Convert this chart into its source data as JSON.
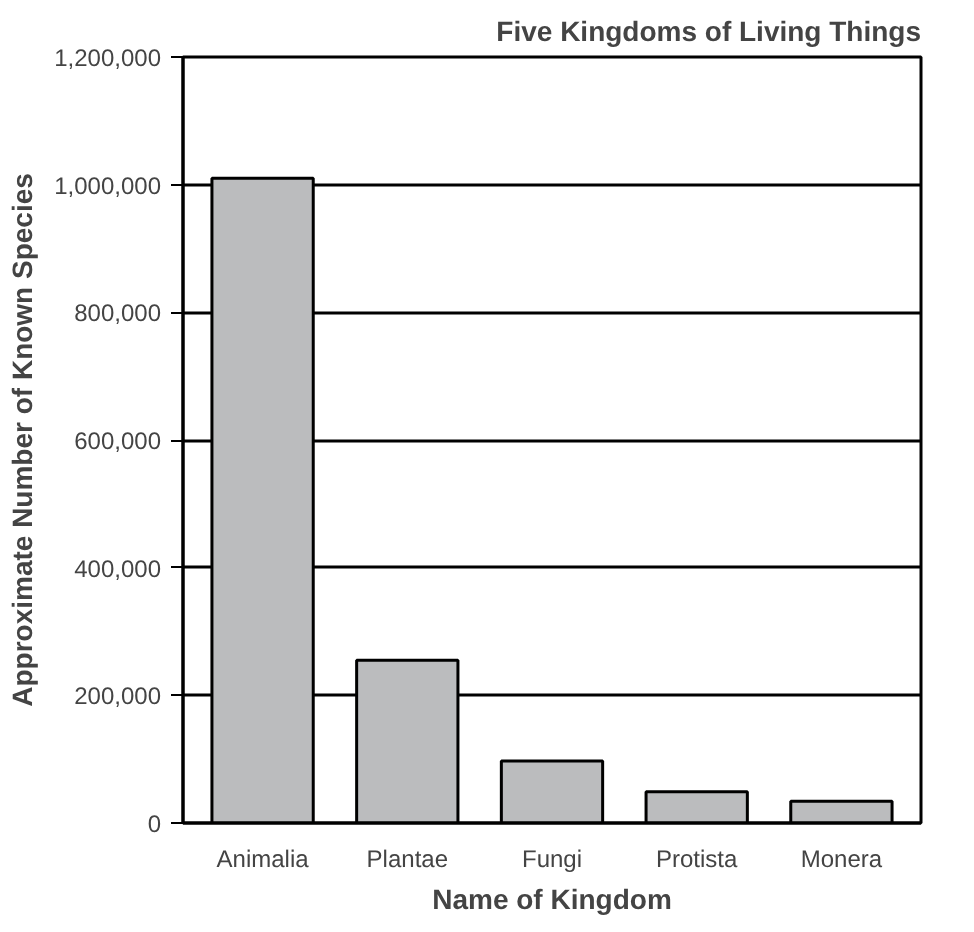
{
  "chart_data": {
    "type": "bar",
    "title": "Five Kingdoms of Living Things",
    "xlabel": "Name of Kingdom",
    "ylabel": "Approximate Number of Known Species",
    "categories": [
      "Animalia",
      "Plantae",
      "Fungi",
      "Protista",
      "Monera"
    ],
    "values": [
      1010000,
      255000,
      97000,
      49000,
      34000
    ],
    "color": "#bbbcbe",
    "ylim": [
      0,
      1200000
    ],
    "yticks": [
      0,
      {
        "value": 200000,
        "label": "200,000"
      },
      {
        "value": 400000,
        "label": "400,000"
      },
      {
        "value": 600000,
        "label": "600,000"
      },
      {
        "value": 800000,
        "label": "800,000"
      },
      {
        "value": 1000000,
        "label": "1,000,000"
      },
      {
        "value": 1200000,
        "label": "1,200,000"
      }
    ],
    "grid": "y"
  }
}
